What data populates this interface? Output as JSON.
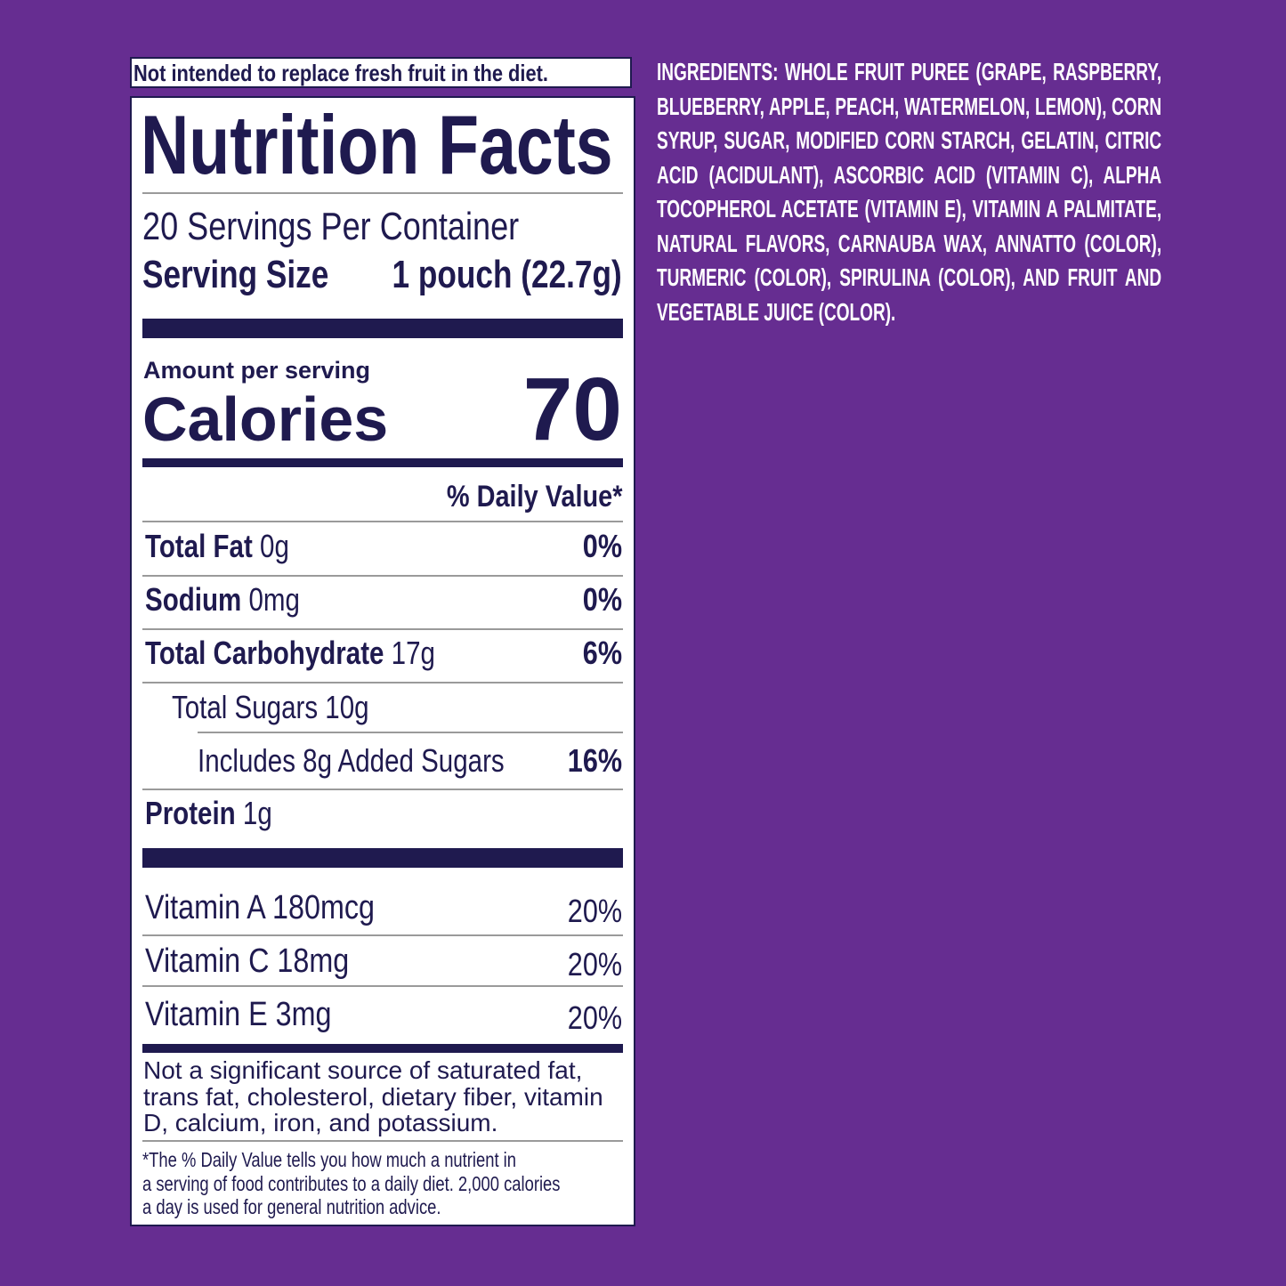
{
  "notice": "Not intended to replace fresh fruit in the diet.",
  "title": "Nutrition Facts",
  "servings_per_container": "20 Servings Per Container",
  "serving_size_label": "Serving Size",
  "serving_size_value": "1 pouch (22.7g)",
  "amount_per_serving": "Amount per serving",
  "calories_label": "Calories",
  "calories_value": "70",
  "daily_value_header": "% Daily Value*",
  "nutrients": [
    {
      "name": "Total Fat",
      "amount": "0g",
      "dv": "0%"
    },
    {
      "name": "Sodium",
      "amount": "0mg",
      "dv": "0%"
    },
    {
      "name": "Total Carbohydrate",
      "amount": "17g",
      "dv": "6%"
    },
    {
      "name": "Total Sugars 10g",
      "amount": "",
      "dv": ""
    },
    {
      "name": "Includes 8g Added Sugars",
      "amount": "",
      "dv": "16%"
    },
    {
      "name": "Protein",
      "amount": "1g",
      "dv": ""
    }
  ],
  "vitamins": [
    {
      "name": "Vitamin A 180mcg",
      "dv": "20%"
    },
    {
      "name": "Vitamin C 18mg",
      "dv": "20%"
    },
    {
      "name": "Vitamin E 3mg",
      "dv": "20%"
    }
  ],
  "not_significant": "Not a significant source of saturated fat, trans fat, cholesterol, dietary fiber, vitamin D, calcium, iron, and potassium.",
  "footnote": [
    "*The % Daily Value tells you how much a nutrient in",
    "a serving of food contributes to a daily diet. 2,000 calories",
    "a day is used for general nutrition advice."
  ],
  "ingredients_label": "INGREDIENTS:",
  "ingredients_text": "WHOLE FRUIT PUREE (GRAPE, RASPBERRY, BLUEBERRY, APPLE, PEACH, WATERMELON, LEMON), CORN SYRUP, SUGAR, MODIFIED CORN STARCH, GELATIN, CITRIC ACID (ACIDULANT), ASCORBIC ACID (VITAMIN C), ALPHA TOCOPHEROL ACETATE (VITAMIN E), VITAMIN A PALMITATE, NATURAL FLAVORS, CARNAUBA WAX, ANNATTO (COLOR), TURMERIC (COLOR), SPIRULINA (COLOR), AND FRUIT AND VEGETABLE JUICE (COLOR).",
  "colors": {
    "background": "#662d91",
    "ink": "#1f1a4f",
    "panel": "#ffffff"
  }
}
